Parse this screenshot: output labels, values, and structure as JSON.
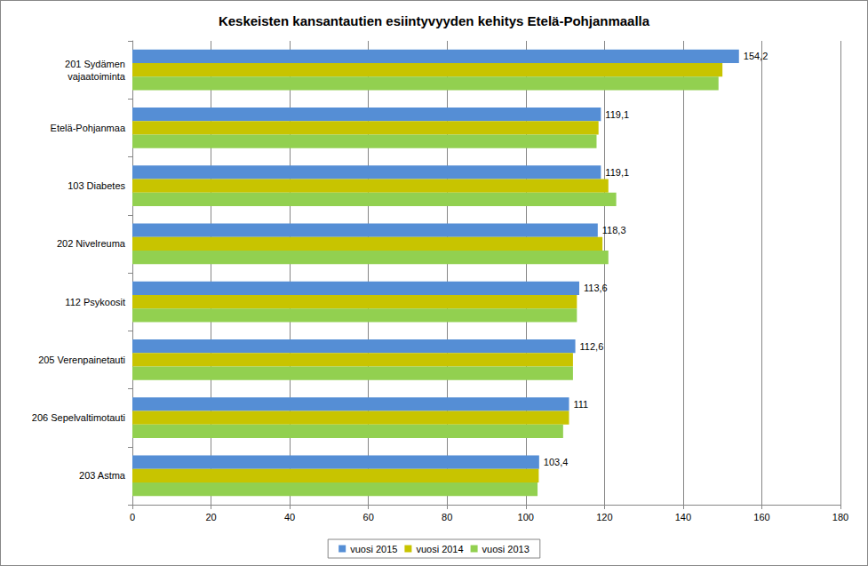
{
  "chart_data": {
    "type": "bar",
    "orientation": "horizontal",
    "title": "Keskeisten kansantautien esiintyvyyden kehitys Etelä-Pohjanmaalla",
    "categories": [
      "201 Sydämen\nvajaatoiminta",
      "Etelä-Pohjanmaa",
      "103 Diabetes",
      "202 Nivelreuma",
      "112 Psykoosit",
      "205 Verenpainetauti",
      "206 Sepelvaltimotauti",
      "203 Astma"
    ],
    "series": [
      {
        "name": "vuosi 2015",
        "color": "#558ed5",
        "values": [
          154.2,
          119.1,
          119.1,
          118.3,
          113.6,
          112.6,
          111,
          103.4
        ],
        "data_labels": true,
        "value_labels": [
          "154,2",
          "119,1",
          "119,1",
          "118,3",
          "113,6",
          "112,6",
          "111",
          "103,4"
        ]
      },
      {
        "name": "vuosi 2014",
        "color": "#c8c400",
        "values": [
          150,
          118.5,
          121,
          119.5,
          113,
          112,
          111,
          103.3
        ]
      },
      {
        "name": "vuosi 2013",
        "color": "#92d050",
        "values": [
          149,
          118,
          123,
          121,
          113,
          112,
          109.5,
          103
        ]
      }
    ],
    "xlim": [
      0,
      180
    ],
    "xticks": [
      0,
      20,
      40,
      60,
      80,
      100,
      120,
      140,
      160,
      180
    ],
    "grid": true,
    "legend": "bottom"
  }
}
